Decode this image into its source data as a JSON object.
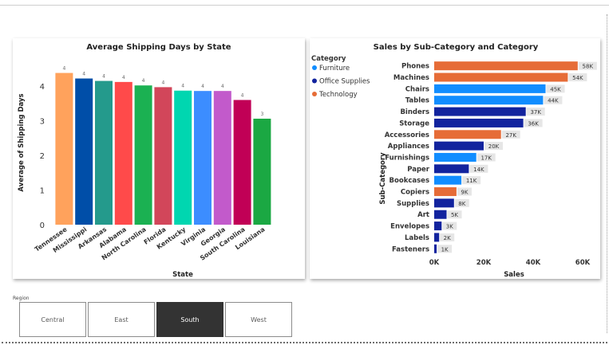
{
  "chart_data": [
    {
      "type": "bar",
      "title": "Average Shipping Days by State",
      "xlabel": "State",
      "ylabel": "Average of Shipping Days",
      "categories": [
        "Tennessee",
        "Mississippi",
        "Arkansas",
        "Alabama",
        "North Carolina",
        "Florida",
        "Kentucky",
        "Virginia",
        "Georgia",
        "South Carolina",
        "Louisiana"
      ],
      "values": [
        4.38,
        4.22,
        4.15,
        4.12,
        4.02,
        3.97,
        3.87,
        3.86,
        3.86,
        3.6,
        3.06
      ],
      "data_labels": [
        "4",
        "4",
        "4",
        "4",
        "4",
        "4",
        "4",
        "4",
        "4",
        "4",
        "3"
      ],
      "colors": [
        "#FFA25C",
        "#004EA8",
        "#249A8C",
        "#FF4A4A",
        "#1BB152",
        "#D2465A",
        "#00D6B0",
        "#3C8DFF",
        "#C25ACB",
        "#C10056",
        "#1BA843"
      ],
      "yticks": [
        "0",
        "1",
        "2",
        "3",
        "4"
      ],
      "ylim": [
        0,
        4.6
      ],
      "grid": false
    },
    {
      "type": "bar",
      "orientation": "horizontal",
      "title": "Sales by Sub-Category and Category",
      "xlabel": "Sales",
      "ylabel": "Sub-Category",
      "legend_title": "Category",
      "legend": [
        {
          "name": "Furniture",
          "color": "#118DFF"
        },
        {
          "name": "Office Supplies",
          "color": "#12239E"
        },
        {
          "name": "Technology",
          "color": "#E66C37"
        }
      ],
      "categories": [
        "Phones",
        "Machines",
        "Chairs",
        "Tables",
        "Binders",
        "Storage",
        "Accessories",
        "Appliances",
        "Furnishings",
        "Paper",
        "Bookcases",
        "Copiers",
        "Supplies",
        "Art",
        "Envelopes",
        "Labels",
        "Fasteners"
      ],
      "values": [
        58000,
        54000,
        45000,
        44000,
        37000,
        36000,
        27000,
        20000,
        17000,
        14000,
        11000,
        9000,
        8000,
        5000,
        3000,
        2000,
        1000
      ],
      "data_labels": [
        "58K",
        "54K",
        "45K",
        "44K",
        "37K",
        "36K",
        "27K",
        "20K",
        "17K",
        "14K",
        "11K",
        "9K",
        "8K",
        "5K",
        "3K",
        "2K",
        "1K"
      ],
      "category_of": [
        "Technology",
        "Technology",
        "Furniture",
        "Furniture",
        "Office Supplies",
        "Office Supplies",
        "Technology",
        "Office Supplies",
        "Furniture",
        "Office Supplies",
        "Furniture",
        "Technology",
        "Office Supplies",
        "Office Supplies",
        "Office Supplies",
        "Office Supplies",
        "Office Supplies"
      ],
      "xticks": [
        "0K",
        "20K",
        "40K",
        "60K"
      ],
      "xlim": [
        0,
        60000
      ],
      "grid": false
    }
  ],
  "slicer": {
    "title": "Region",
    "items": [
      {
        "label": "Central",
        "selected": false
      },
      {
        "label": "East",
        "selected": false
      },
      {
        "label": "South",
        "selected": true
      },
      {
        "label": "West",
        "selected": false
      }
    ]
  }
}
